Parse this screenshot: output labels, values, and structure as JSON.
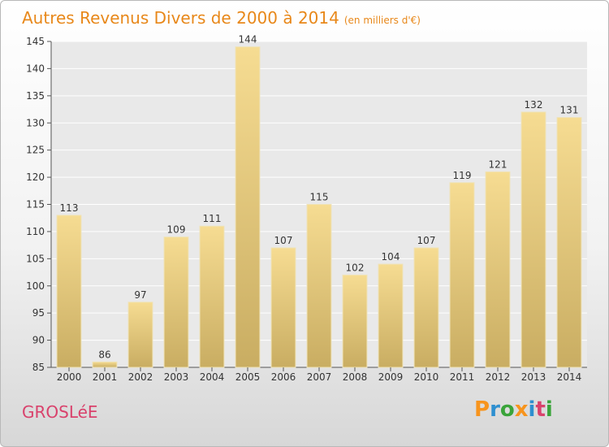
{
  "header": {
    "title": "Autres Revenus Divers de 2000 à 2014",
    "subtitle": "(en milliers d'€)"
  },
  "footer": {
    "commune": "GROSLéE",
    "brand": "Proxiti",
    "brand_colors": [
      "#f7941d",
      "#2e8fd0",
      "#3aa43a",
      "#f7941d",
      "#2e8fd0",
      "#d9426c",
      "#3aa43a"
    ]
  },
  "colors": {
    "title": "#e8881a",
    "commune": "#d9426c",
    "bar_top": "#f6dc92",
    "bar_bottom": "#c9ad62",
    "grid": "#ffffff"
  },
  "chart_data": {
    "type": "bar",
    "title": "Autres Revenus Divers de 2000 à 2014",
    "subtitle": "(en milliers d'€)",
    "categories": [
      "2000",
      "2001",
      "2002",
      "2003",
      "2004",
      "2005",
      "2006",
      "2007",
      "2008",
      "2009",
      "2010",
      "2011",
      "2012",
      "2013",
      "2014"
    ],
    "values": [
      113,
      86,
      97,
      109,
      111,
      144,
      107,
      115,
      102,
      104,
      107,
      119,
      121,
      132,
      131
    ],
    "ylim": [
      85,
      145
    ],
    "yticks": [
      85,
      90,
      95,
      100,
      105,
      110,
      115,
      120,
      125,
      130,
      135,
      140,
      145
    ],
    "grid": true,
    "xlabel": "",
    "ylabel": ""
  }
}
